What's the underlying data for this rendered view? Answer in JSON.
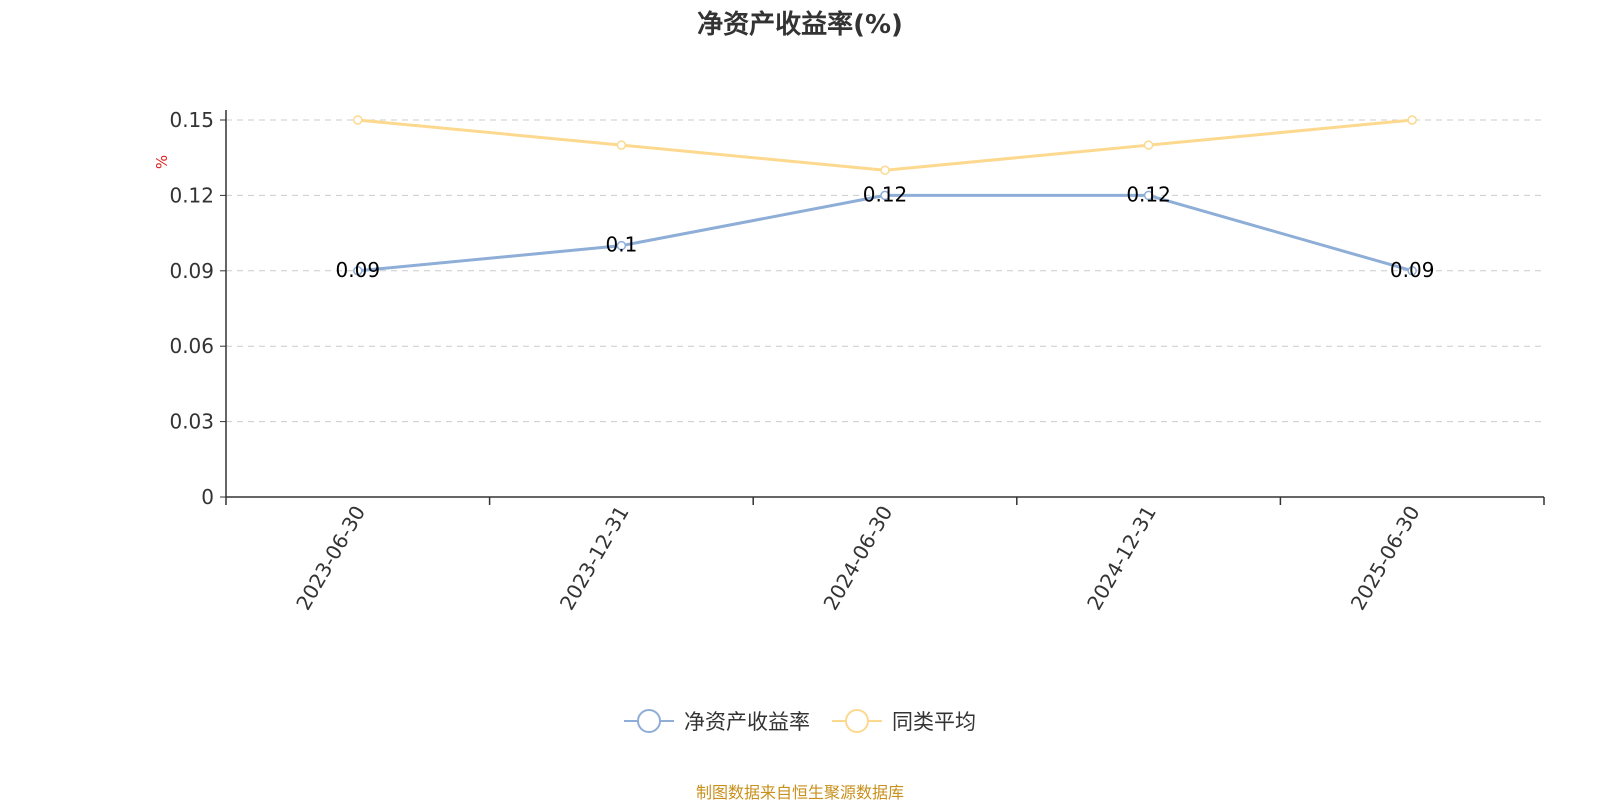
{
  "chart_data": {
    "type": "line",
    "title": "净资产收益率(%)",
    "ylabel": "%",
    "categories": [
      "2023-06-30",
      "2023-12-31",
      "2024-06-30",
      "2024-12-31",
      "2025-06-30"
    ],
    "series": [
      {
        "name": "净资产收益率",
        "values": [
          0.09,
          0.1,
          0.12,
          0.12,
          0.09
        ],
        "color": "#8eaed8",
        "show_labels": true
      },
      {
        "name": "同类平均",
        "values": [
          0.15,
          0.14,
          0.13,
          0.14,
          0.15
        ],
        "color": "#fcd98f",
        "show_labels": false
      }
    ],
    "y_ticks": [
      "0",
      "0.03",
      "0.06",
      "0.09",
      "0.12",
      "0.15"
    ],
    "ylim": [
      0,
      0.15
    ],
    "grid": true,
    "grid_style": "dashed",
    "legend_position": "bottom-center"
  },
  "source_note": "制图数据来自恒生聚源数据库",
  "colors": {
    "axis": "#333333",
    "grid": "#cccccc",
    "ylabel": "#e02020",
    "source": "#c8901c"
  }
}
